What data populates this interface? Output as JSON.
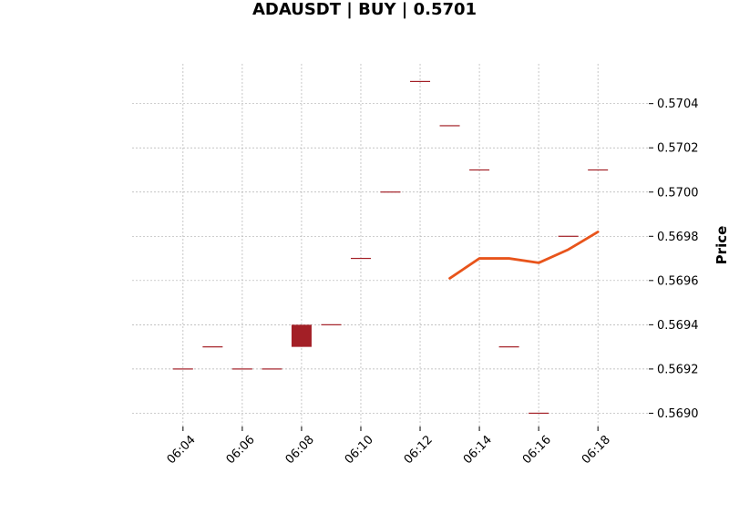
{
  "chart_data": {
    "type": "candlestick",
    "title": "ADAUSDT | BUY | 0.5701",
    "xlabel": "",
    "ylabel": "Price",
    "x_ticks": [
      "06:04",
      "06:06",
      "06:08",
      "06:10",
      "06:12",
      "06:14",
      "06:16",
      "06:18"
    ],
    "y_ticks": [
      "0.5690",
      "0.5692",
      "0.5694",
      "0.5696",
      "0.5698",
      "0.5700",
      "0.5702",
      "0.5704"
    ],
    "ylim": [
      0.56894,
      0.57058
    ],
    "xlim": [
      "06:02:17",
      "06:19:43"
    ],
    "grid": true,
    "candles": [
      {
        "time": "06:04",
        "open": 0.5692,
        "high": 0.5692,
        "low": 0.5692,
        "close": 0.5692
      },
      {
        "time": "06:05",
        "open": 0.5693,
        "high": 0.5693,
        "low": 0.5693,
        "close": 0.5693
      },
      {
        "time": "06:06",
        "open": 0.5692,
        "high": 0.5692,
        "low": 0.5692,
        "close": 0.5692
      },
      {
        "time": "06:07",
        "open": 0.5692,
        "high": 0.5692,
        "low": 0.5692,
        "close": 0.5692
      },
      {
        "time": "06:08",
        "open": 0.5694,
        "high": 0.5694,
        "low": 0.5693,
        "close": 0.5693
      },
      {
        "time": "06:09",
        "open": 0.5694,
        "high": 0.5694,
        "low": 0.5694,
        "close": 0.5694
      },
      {
        "time": "06:10",
        "open": 0.5697,
        "high": 0.5697,
        "low": 0.5697,
        "close": 0.5697
      },
      {
        "time": "06:11",
        "open": 0.57,
        "high": 0.57,
        "low": 0.57,
        "close": 0.57
      },
      {
        "time": "06:12",
        "open": 0.5705,
        "high": 0.5705,
        "low": 0.5705,
        "close": 0.5705
      },
      {
        "time": "06:13",
        "open": 0.5703,
        "high": 0.5703,
        "low": 0.5703,
        "close": 0.5703
      },
      {
        "time": "06:14",
        "open": 0.5701,
        "high": 0.5701,
        "low": 0.5701,
        "close": 0.5701
      },
      {
        "time": "06:15",
        "open": 0.5693,
        "high": 0.5693,
        "low": 0.5693,
        "close": 0.5693
      },
      {
        "time": "06:16",
        "open": 0.569,
        "high": 0.569,
        "low": 0.569,
        "close": 0.569
      },
      {
        "time": "06:17",
        "open": 0.5698,
        "high": 0.5698,
        "low": 0.5698,
        "close": 0.5698
      },
      {
        "time": "06:18",
        "open": 0.5701,
        "high": 0.5701,
        "low": 0.5701,
        "close": 0.5701
      }
    ],
    "line_series": {
      "color": "#e8541b",
      "points": [
        {
          "time": "06:13",
          "value": 0.56961
        },
        {
          "time": "06:14",
          "value": 0.5697
        },
        {
          "time": "06:15",
          "value": 0.5697
        },
        {
          "time": "06:16",
          "value": 0.56968
        },
        {
          "time": "06:17",
          "value": 0.56974
        },
        {
          "time": "06:18",
          "value": 0.56982
        }
      ]
    },
    "colors": {
      "candle": "#a31f26",
      "grid": "#b0b0b0"
    }
  }
}
